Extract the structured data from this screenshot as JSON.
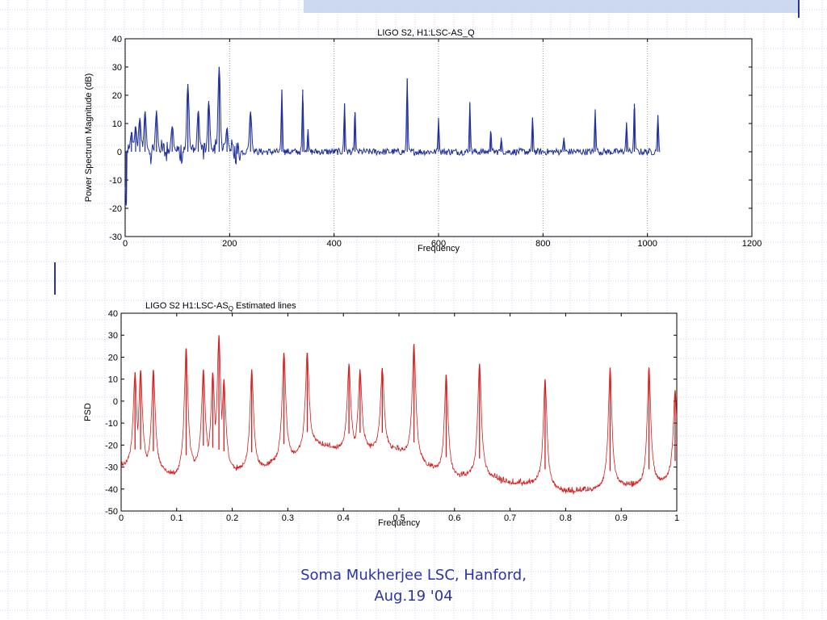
{
  "colors": {
    "background": "#ffffff",
    "grid_line": "#c9d3ec",
    "header_band": "#c8d4ef",
    "accent_bar": "#2a33a6",
    "series_top": "#1f2f9c",
    "series_bottom": "#d21f1f",
    "footer_text": "#2a33a6"
  },
  "footer": {
    "line1": "Soma Mukherjee LSC, Hanford,",
    "line2": "Aug.19 '04"
  },
  "chart_data": [
    {
      "type": "line",
      "title": "LIGO S2, H1:LSC-AS_Q",
      "xlabel": "Frequency",
      "ylabel": "Power Spectrum Magnitude (dB)",
      "xlim": [
        0,
        1200
      ],
      "ylim": [
        -30,
        40
      ],
      "xticks": [
        0,
        200,
        400,
        600,
        800,
        1000,
        1200
      ],
      "yticks": [
        -30,
        -20,
        -10,
        0,
        10,
        20,
        30,
        40
      ],
      "grid": "vertical",
      "x_end": 1024,
      "noise_floor": 0,
      "peaks": [
        {
          "x": 2,
          "y": -19
        },
        {
          "x": 12,
          "y": 7
        },
        {
          "x": 20,
          "y": 9
        },
        {
          "x": 28,
          "y": 12
        },
        {
          "x": 38,
          "y": 14
        },
        {
          "x": 60,
          "y": 14
        },
        {
          "x": 90,
          "y": 9
        },
        {
          "x": 120,
          "y": 24
        },
        {
          "x": 140,
          "y": 14
        },
        {
          "x": 160,
          "y": 18
        },
        {
          "x": 180,
          "y": 30
        },
        {
          "x": 195,
          "y": 8
        },
        {
          "x": 240,
          "y": 14
        },
        {
          "x": 300,
          "y": 22
        },
        {
          "x": 340,
          "y": 22
        },
        {
          "x": 350,
          "y": 8
        },
        {
          "x": 420,
          "y": 17
        },
        {
          "x": 440,
          "y": 14
        },
        {
          "x": 540,
          "y": 26
        },
        {
          "x": 600,
          "y": 12
        },
        {
          "x": 660,
          "y": 17
        },
        {
          "x": 700,
          "y": 7
        },
        {
          "x": 720,
          "y": 5
        },
        {
          "x": 780,
          "y": 12
        },
        {
          "x": 840,
          "y": 5
        },
        {
          "x": 900,
          "y": 15
        },
        {
          "x": 960,
          "y": 10
        },
        {
          "x": 975,
          "y": 17
        },
        {
          "x": 1020,
          "y": 13
        }
      ]
    },
    {
      "type": "line",
      "title": "LIGO S2 H1:LSC-AS",
      "title_subscript": "Q",
      "title_suffix": " Estimated lines",
      "xlabel": "Frequency",
      "ylabel": "PSD",
      "xlim": [
        0,
        1
      ],
      "ylim": [
        -50,
        40
      ],
      "xticks": [
        0,
        0.1,
        0.2,
        0.3,
        0.4,
        0.5,
        0.6,
        0.7,
        0.8,
        0.9,
        1
      ],
      "yticks": [
        -50,
        -40,
        -30,
        -20,
        -10,
        0,
        10,
        20,
        30,
        40
      ],
      "grid": "off",
      "baseline_points": [
        {
          "x": 0.0,
          "y": -30
        },
        {
          "x": 0.05,
          "y": -30
        },
        {
          "x": 0.1,
          "y": -35
        },
        {
          "x": 0.15,
          "y": -28
        },
        {
          "x": 0.2,
          "y": -32
        },
        {
          "x": 0.25,
          "y": -31
        },
        {
          "x": 0.3,
          "y": -27
        },
        {
          "x": 0.35,
          "y": -20
        },
        {
          "x": 0.4,
          "y": -23
        },
        {
          "x": 0.45,
          "y": -22
        },
        {
          "x": 0.5,
          "y": -23
        },
        {
          "x": 0.55,
          "y": -30
        },
        {
          "x": 0.6,
          "y": -35
        },
        {
          "x": 0.65,
          "y": -34
        },
        {
          "x": 0.7,
          "y": -38
        },
        {
          "x": 0.75,
          "y": -38
        },
        {
          "x": 0.8,
          "y": -42
        },
        {
          "x": 0.85,
          "y": -41
        },
        {
          "x": 0.9,
          "y": -39
        },
        {
          "x": 0.95,
          "y": -39
        },
        {
          "x": 1.0,
          "y": -35
        }
      ],
      "peaks": [
        {
          "x": 0.025,
          "y": 13
        },
        {
          "x": 0.035,
          "y": 14
        },
        {
          "x": 0.058,
          "y": 14
        },
        {
          "x": 0.117,
          "y": 24
        },
        {
          "x": 0.148,
          "y": 14
        },
        {
          "x": 0.165,
          "y": 13
        },
        {
          "x": 0.176,
          "y": 30
        },
        {
          "x": 0.185,
          "y": 10
        },
        {
          "x": 0.235,
          "y": 14
        },
        {
          "x": 0.293,
          "y": 22
        },
        {
          "x": 0.335,
          "y": 22
        },
        {
          "x": 0.41,
          "y": 17
        },
        {
          "x": 0.43,
          "y": 14
        },
        {
          "x": 0.47,
          "y": 15
        },
        {
          "x": 0.527,
          "y": 26
        },
        {
          "x": 0.585,
          "y": 12
        },
        {
          "x": 0.645,
          "y": 17
        },
        {
          "x": 0.763,
          "y": 10
        },
        {
          "x": 0.88,
          "y": 15
        },
        {
          "x": 0.95,
          "y": 15
        },
        {
          "x": 0.997,
          "y": 5
        }
      ]
    }
  ]
}
